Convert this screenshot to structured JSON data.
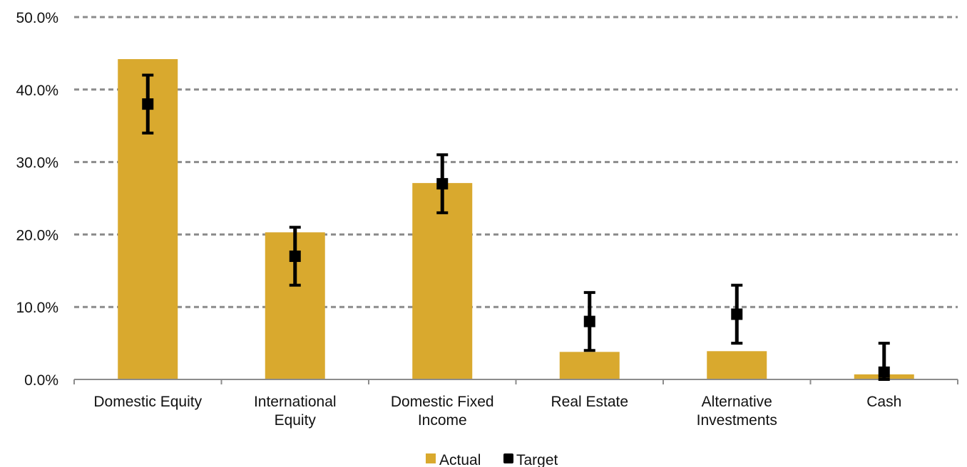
{
  "chart_data": {
    "type": "bar",
    "title": "",
    "xlabel": "",
    "ylabel": "",
    "categories": [
      [
        "Domestic Equity"
      ],
      [
        "International",
        "Equity"
      ],
      [
        "Domestic Fixed",
        "Income"
      ],
      [
        "Real Estate"
      ],
      [
        "Alternative",
        "Investments"
      ],
      [
        "Cash"
      ]
    ],
    "series": [
      {
        "name": "Actual",
        "type": "bar",
        "values": [
          44.2,
          20.3,
          27.1,
          3.8,
          3.9,
          0.7
        ],
        "color": "#D9A92E"
      },
      {
        "name": "Target",
        "type": "marker-with-range",
        "values": [
          38,
          17,
          27,
          8,
          9,
          1
        ],
        "low": [
          34,
          13,
          23,
          4,
          5,
          0
        ],
        "high": [
          42,
          21,
          31,
          12,
          13,
          5
        ],
        "color": "#000000"
      }
    ],
    "ylim": [
      0,
      50
    ],
    "yticks": [
      0,
      10,
      20,
      30,
      40,
      50
    ],
    "ytick_labels": [
      "0.0%",
      "10.0%",
      "20.0%",
      "30.0%",
      "40.0%",
      "50.0%"
    ],
    "grid": true,
    "legend": {
      "position": "bottom-center",
      "entries": [
        "Actual",
        "Target"
      ]
    }
  }
}
